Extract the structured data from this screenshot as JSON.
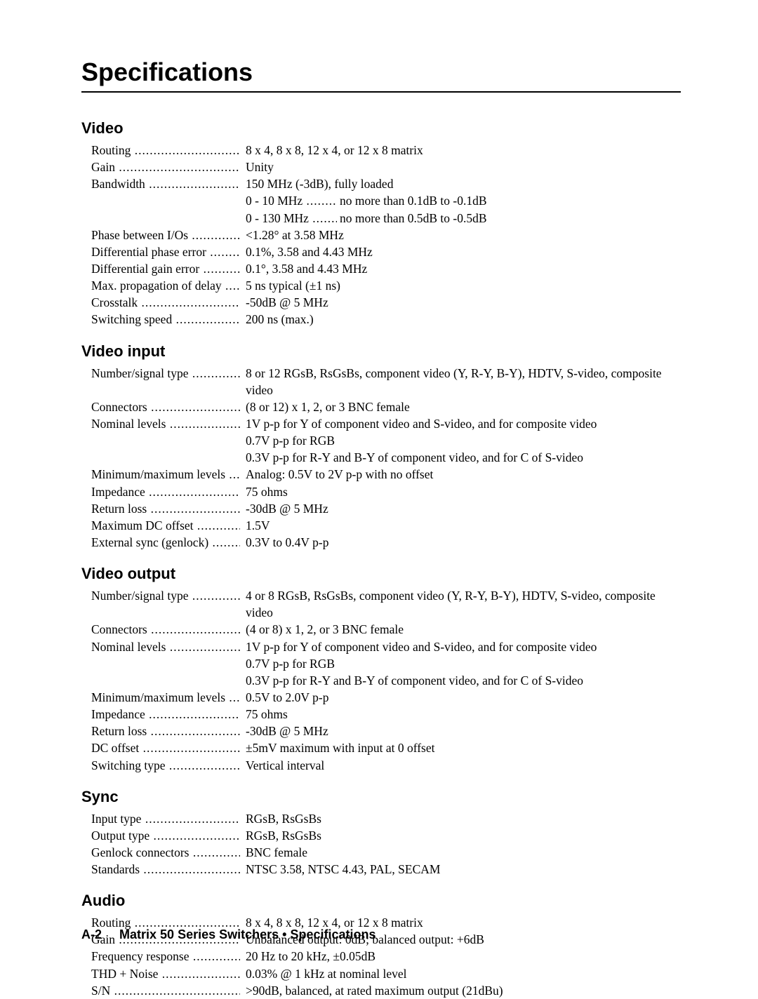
{
  "title": "Specifications",
  "sections": [
    {
      "heading": "Video",
      "rows": [
        {
          "label": "Routing",
          "value": "8 x 4, 8 x 8, 12 x 4, or 12 x 8 matrix"
        },
        {
          "label": "Gain",
          "value": "Unity"
        },
        {
          "label": "Bandwidth",
          "value": "150 MHz (-3dB), fully loaded",
          "sub": [
            {
              "sublabel": "0 - 10 MHz",
              "subvalue": "no more than 0.1dB to -0.1dB"
            },
            {
              "sublabel": "0 - 130 MHz",
              "subvalue": "no more than 0.5dB to -0.5dB"
            }
          ]
        },
        {
          "label": "Phase between I/Os",
          "value": "<1.28°  at 3.58 MHz"
        },
        {
          "label": "Differential phase error",
          "value": "0.1%, 3.58 and 4.43 MHz"
        },
        {
          "label": "Differential gain error",
          "value": "0.1°, 3.58 and 4.43 MHz"
        },
        {
          "label": "Max. propagation of delay",
          "value": "5 ns typical (±1 ns)"
        },
        {
          "label": "Crosstalk",
          "value": "-50dB @ 5 MHz"
        },
        {
          "label": "Switching speed",
          "value": "200 ns (max.)"
        }
      ]
    },
    {
      "heading": "Video input",
      "rows": [
        {
          "label": "Number/signal type",
          "value": "8 or 12 RGsB, RsGsBs, component video (Y, R-Y, B-Y), HDTV, S-video, composite video"
        },
        {
          "label": "Connectors",
          "value": "(8 or 12) x 1, 2, or 3 BNC female"
        },
        {
          "label": "Nominal levels",
          "value": "1V p-p for Y of component video and S-video, and for composite video",
          "cont": [
            "0.7V p-p for RGB",
            "0.3V p-p for R-Y and B-Y of component video, and for C of S-video"
          ]
        },
        {
          "label": "Minimum/maximum levels",
          "value": "Analog: 0.5V to 2V p-p with no offset"
        },
        {
          "label": "Impedance",
          "value": "75 ohms"
        },
        {
          "label": "Return loss",
          "value": "-30dB @ 5 MHz"
        },
        {
          "label": "Maximum DC offset",
          "value": "1.5V"
        },
        {
          "label": "External sync (genlock)",
          "value": "0.3V to 0.4V p-p"
        }
      ]
    },
    {
      "heading": "Video output",
      "rows": [
        {
          "label": "Number/signal type",
          "value": "4 or 8 RGsB, RsGsBs, component video (Y, R-Y, B-Y), HDTV, S-video, composite video"
        },
        {
          "label": "Connectors",
          "value": "(4 or 8) x 1, 2, or 3 BNC female"
        },
        {
          "label": "Nominal levels",
          "value": "1V p-p for Y of component video and S-video, and for composite video",
          "cont": [
            "0.7V p-p for RGB",
            "0.3V p-p for R-Y and B-Y of component video, and for C of S-video"
          ]
        },
        {
          "label": "Minimum/maximum levels",
          "value": "0.5V to 2.0V p-p"
        },
        {
          "label": "Impedance",
          "value": "75 ohms"
        },
        {
          "label": "Return loss",
          "value": "-30dB @ 5 MHz"
        },
        {
          "label": "DC offset",
          "value": "±5mV maximum with input at 0 offset"
        },
        {
          "label": "Switching type",
          "value": "Vertical interval"
        }
      ]
    },
    {
      "heading": "Sync",
      "rows": [
        {
          "label": "Input type",
          "value": "RGsB, RsGsBs"
        },
        {
          "label": "Output type",
          "value": "RGsB, RsGsBs"
        },
        {
          "label": "Genlock connectors",
          "value": "BNC female"
        },
        {
          "label": "Standards",
          "value": "NTSC 3.58, NTSC 4.43, PAL, SECAM"
        }
      ]
    },
    {
      "heading": "Audio",
      "rows": [
        {
          "label": "Routing",
          "value": "8 x 4, 8 x 8, 12 x 4, or 12 x 8 matrix"
        },
        {
          "label": "Gain",
          "value": "Unbalanced output: 0dB; balanced output: +6dB"
        },
        {
          "label": "Frequency response",
          "value": "20 Hz to 20 kHz, ±0.05dB"
        },
        {
          "label": "THD + Noise",
          "value": "0.03% @ 1 kHz at nominal level"
        },
        {
          "label": "S/N",
          "value": ">90dB, balanced, at rated maximum output (21dBu)"
        }
      ]
    }
  ],
  "footer": {
    "page": "A-2",
    "text": "Matrix 50 Series Switchers • Specifications"
  }
}
